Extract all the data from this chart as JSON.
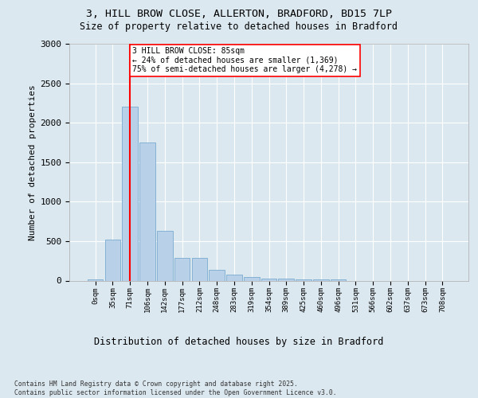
{
  "title_line1": "3, HILL BROW CLOSE, ALLERTON, BRADFORD, BD15 7LP",
  "title_line2": "Size of property relative to detached houses in Bradford",
  "xlabel": "Distribution of detached houses by size in Bradford",
  "ylabel": "Number of detached properties",
  "bar_labels": [
    "0sqm",
    "35sqm",
    "71sqm",
    "106sqm",
    "142sqm",
    "177sqm",
    "212sqm",
    "248sqm",
    "283sqm",
    "319sqm",
    "354sqm",
    "389sqm",
    "425sqm",
    "460sqm",
    "496sqm",
    "531sqm",
    "566sqm",
    "602sqm",
    "637sqm",
    "673sqm",
    "708sqm"
  ],
  "bar_values": [
    20,
    520,
    2200,
    1750,
    630,
    285,
    285,
    140,
    75,
    45,
    30,
    25,
    20,
    15,
    20,
    0,
    0,
    0,
    0,
    0,
    0
  ],
  "bar_color": "#b8d0e8",
  "bar_edge_color": "#7aaad0",
  "vline_x": 2.0,
  "vline_color": "red",
  "annotation_text": "3 HILL BROW CLOSE: 85sqm\n← 24% of detached houses are smaller (1,369)\n75% of semi-detached houses are larger (4,278) →",
  "annotation_box_color": "white",
  "annotation_box_edge": "red",
  "ylim": [
    0,
    3000
  ],
  "yticks": [
    0,
    500,
    1000,
    1500,
    2000,
    2500,
    3000
  ],
  "footnote": "Contains HM Land Registry data © Crown copyright and database right 2025.\nContains public sector information licensed under the Open Government Licence v3.0.",
  "bg_color": "#dce8f0",
  "plot_bg_color": "#dce8f0"
}
